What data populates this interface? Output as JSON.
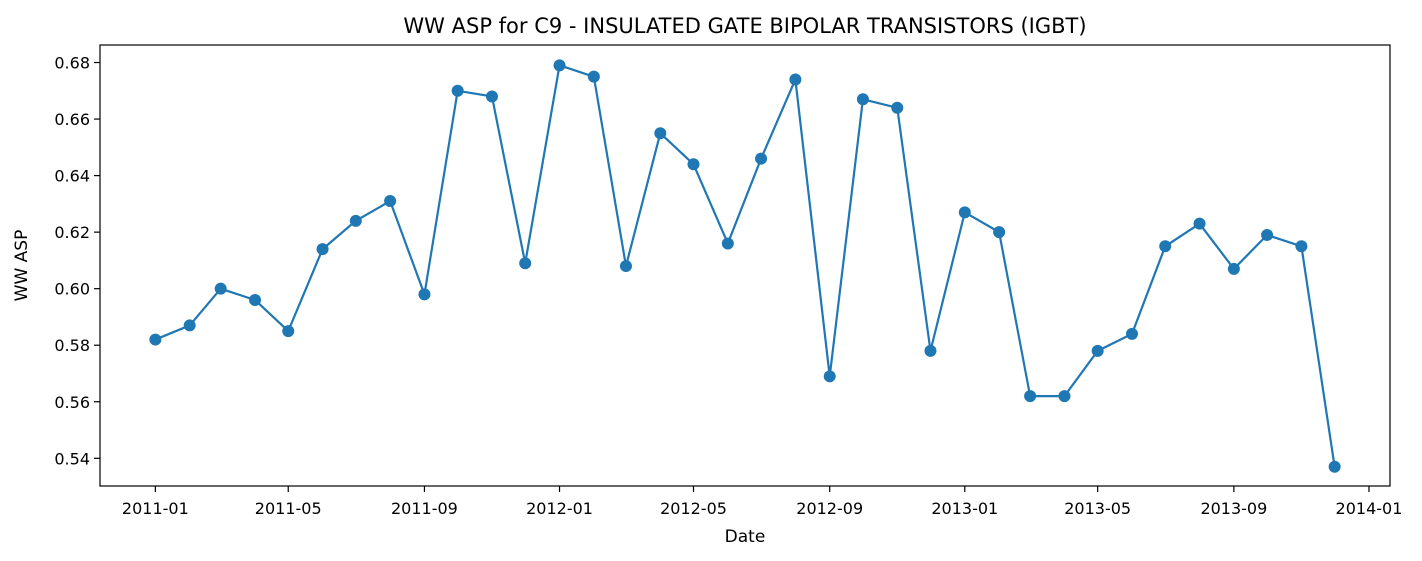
{
  "chart_data": {
    "type": "line",
    "title": "WW ASP for C9 - INSULATED GATE BIPOLAR TRANSISTORS (IGBT)",
    "xlabel": "Date",
    "ylabel": "WW ASP",
    "x_axis_type": "date",
    "xlim": [
      "2010-11-12",
      "2014-01-20"
    ],
    "ylim": [
      0.5302,
      0.6862
    ],
    "x_ticks": [
      "2011-01",
      "2011-05",
      "2011-09",
      "2012-01",
      "2012-05",
      "2012-09",
      "2013-01",
      "2013-05",
      "2013-09",
      "2014-01"
    ],
    "y_ticks": [
      "0.54",
      "0.56",
      "0.58",
      "0.60",
      "0.62",
      "0.64",
      "0.66",
      "0.68"
    ],
    "grid": false,
    "legend": "none",
    "series_color": "#1f77b4",
    "marker": "circle",
    "series": [
      {
        "x": [
          "2011-01-01",
          "2011-02-01",
          "2011-03-01",
          "2011-04-01",
          "2011-05-01",
          "2011-06-01",
          "2011-07-01",
          "2011-08-01",
          "2011-09-01",
          "2011-10-01",
          "2011-11-01",
          "2011-12-01",
          "2012-01-01",
          "2012-02-01",
          "2012-03-01",
          "2012-04-01",
          "2012-05-01",
          "2012-06-01",
          "2012-07-01",
          "2012-08-01",
          "2012-09-01",
          "2012-10-01",
          "2012-11-01",
          "2012-12-01",
          "2013-01-01",
          "2013-02-01",
          "2013-03-01",
          "2013-04-01",
          "2013-05-01",
          "2013-06-01",
          "2013-07-01",
          "2013-08-01",
          "2013-09-01",
          "2013-10-01",
          "2013-11-01",
          "2013-12-01"
        ],
        "values": [
          0.582,
          0.587,
          0.6,
          0.596,
          0.585,
          0.614,
          0.624,
          0.631,
          0.598,
          0.67,
          0.668,
          0.609,
          0.679,
          0.675,
          0.608,
          0.655,
          0.644,
          0.616,
          0.646,
          0.674,
          0.569,
          0.667,
          0.664,
          0.578,
          0.627,
          0.62,
          0.562,
          0.562,
          0.578,
          0.584,
          0.615,
          0.623,
          0.607,
          0.619,
          0.615,
          0.537
        ]
      }
    ]
  }
}
